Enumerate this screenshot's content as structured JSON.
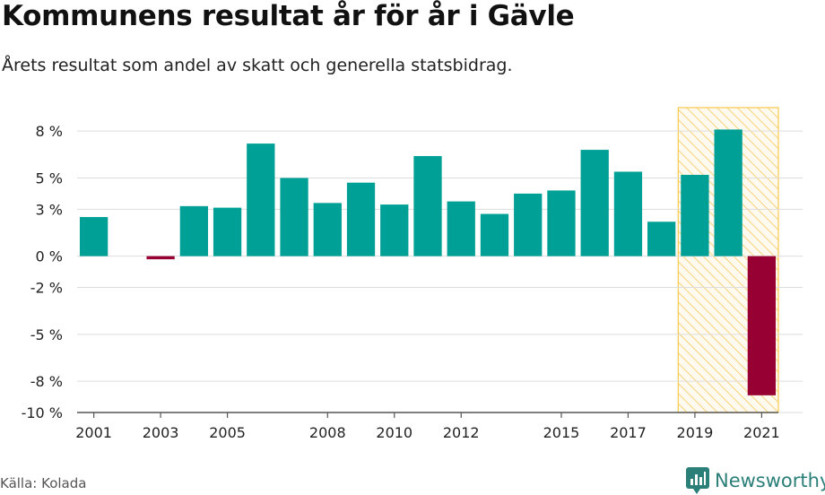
{
  "header": {
    "title": "Kommunens resultat år för år i Gävle",
    "subtitle": "Årets resultat som andel av skatt och generella statsbidrag."
  },
  "footer": {
    "source": "Källa: Kolada",
    "brand": "Newsworthy",
    "brand_icon": "newsworthy-logo-icon",
    "brand_color": "#2a7f78"
  },
  "chart_data": {
    "type": "bar",
    "categories": [
      "2001",
      "2002",
      "2003",
      "2004",
      "2005",
      "2006",
      "2007",
      "2008",
      "2009",
      "2010",
      "2011",
      "2012",
      "2013",
      "2014",
      "2015",
      "2016",
      "2017",
      "2018",
      "2019",
      "2020",
      "2021"
    ],
    "x_tick_labels": [
      "2001",
      "2003",
      "2005",
      "2008",
      "2010",
      "2012",
      "2015",
      "2017",
      "2019",
      "2021"
    ],
    "values": [
      2.5,
      null,
      -0.2,
      3.2,
      3.1,
      7.2,
      5.0,
      3.4,
      4.7,
      3.3,
      6.4,
      3.5,
      2.7,
      4.0,
      4.2,
      6.8,
      5.4,
      2.2,
      5.2,
      8.1,
      -8.9
    ],
    "positive_color": "#00a096",
    "negative_color": "#960032",
    "highlight": {
      "from": "2019",
      "to": "2021",
      "color": "#f8c94a"
    },
    "y_ticks": [
      8,
      5,
      3,
      0,
      -2,
      -5,
      -8,
      -10
    ],
    "y_tick_labels": [
      "8 %",
      "5 %",
      "3 %",
      "0 %",
      "-2 %",
      "-5 %",
      "-8 %",
      "-10 %"
    ],
    "ylim": [
      -10,
      9.5
    ],
    "grid": true,
    "legend": "none"
  }
}
